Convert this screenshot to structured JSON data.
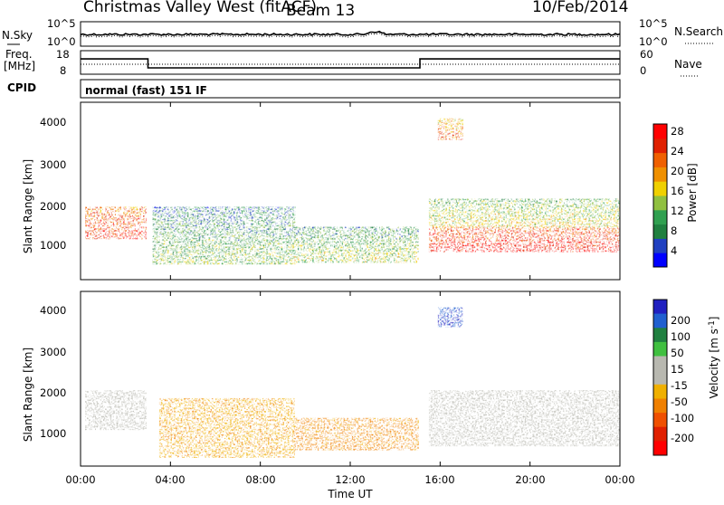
{
  "header": {
    "station": "Christmas Valley West (fitACF)",
    "beam": "Beam 13",
    "date": "10/Feb/2014"
  },
  "status_panel": {
    "nsky_label": "N.Sky",
    "nsky_ticks": [
      "10^5",
      "10^0"
    ],
    "nsearch_label": "N.Search",
    "nsearch_ticks": [
      "10^5",
      "10^0"
    ],
    "freq_label": "Freq.",
    "freq_unit": "[MHz]",
    "freq_ticks": [
      "18",
      "8"
    ],
    "nave_label": "Nave",
    "nave_ticks": [
      "60",
      "0"
    ],
    "cpid_label": "CPID",
    "cpid_value": "normal (fast) 151 IF",
    "freq_series": {
      "segments": [
        {
          "start_h": 0.0,
          "end_h": 3.0,
          "mhz": 14.5
        },
        {
          "start_h": 3.0,
          "end_h": 15.1,
          "mhz": 10.7
        },
        {
          "start_h": 15.1,
          "end_h": 24.0,
          "mhz": 14.5
        }
      ],
      "ylim": [
        8,
        18
      ]
    }
  },
  "power_panel": {
    "ylabel": "Slant Range [km]",
    "yticks": [
      "4000",
      "3000",
      "2000",
      "1000"
    ],
    "colorbar_label": "Power [dB]",
    "colorbar_ticks": [
      "28",
      "24",
      "20",
      "16",
      "12",
      "8",
      "4"
    ],
    "colorbar_colors": [
      "#0000ff",
      "#2040c0",
      "#208040",
      "#30a050",
      "#90c040",
      "#f0d000",
      "#f09000",
      "#f06000",
      "#e02000",
      "#ff0000"
    ]
  },
  "velocity_panel": {
    "ylabel": "Slant Range [km]",
    "yticks": [
      "4000",
      "3000",
      "2000",
      "1000"
    ],
    "colorbar_label": "Velocity [m s",
    "colorbar_exp": "-1",
    "colorbar_label_end": "]",
    "colorbar_ticks": [
      "200",
      "100",
      "50",
      "15",
      "-15",
      "-50",
      "-100",
      "-200"
    ],
    "colorbar_colors": [
      "#2020c0",
      "#2060d0",
      "#208040",
      "#40c040",
      "#b8b8b0",
      "#b8b8b0",
      "#f0b000",
      "#f08000",
      "#f05000",
      "#e02000",
      "#ff0000"
    ]
  },
  "xaxis": {
    "label": "Time UT",
    "ticks": [
      "00:00",
      "04:00",
      "08:00",
      "12:00",
      "16:00",
      "20:00",
      "00:00"
    ]
  },
  "chart_data": [
    {
      "type": "heatmap",
      "title": "",
      "xlabel": "Time UT",
      "ylabel": "Slant Range [km]",
      "zlabel": "Power [dB]",
      "xlim": [
        0,
        24
      ],
      "ylim": [
        180,
        4600
      ],
      "zlim": [
        0,
        30
      ],
      "colorbar_ticks": [
        4,
        8,
        12,
        16,
        20,
        24,
        28
      ],
      "regions": [
        {
          "t_start": 0.2,
          "t_end": 2.9,
          "r_low": 1200,
          "r_high": 2000,
          "power_db": 24
        },
        {
          "t_start": 3.2,
          "t_end": 9.5,
          "r_low": 600,
          "r_high": 2000,
          "power_db": 10
        },
        {
          "t_start": 9.5,
          "t_end": 15.0,
          "r_low": 600,
          "r_high": 1500,
          "power_db": 12
        },
        {
          "t_start": 15.5,
          "t_end": 24.0,
          "r_low": 900,
          "r_high": 1500,
          "power_db": 26
        },
        {
          "t_start": 15.5,
          "t_end": 24.0,
          "r_low": 1500,
          "r_high": 2200,
          "power_db": 14
        },
        {
          "t_start": 15.9,
          "t_end": 17.0,
          "r_low": 3700,
          "r_high": 4200,
          "power_db": 20
        }
      ]
    },
    {
      "type": "heatmap",
      "title": "",
      "xlabel": "Time UT",
      "ylabel": "Slant Range [km]",
      "zlabel": "Velocity [m s-1]",
      "xlim": [
        0,
        24
      ],
      "ylim": [
        180,
        4600
      ],
      "zlim": [
        -250,
        250
      ],
      "colorbar_ticks": [
        200,
        100,
        50,
        15,
        -15,
        -50,
        -100,
        -200
      ],
      "regions": [
        {
          "t_start": 0.2,
          "t_end": 2.9,
          "r_low": 1100,
          "r_high": 2100,
          "velocity": 0
        },
        {
          "t_start": 3.5,
          "t_end": 9.5,
          "r_low": 400,
          "r_high": 1900,
          "velocity": -60
        },
        {
          "t_start": 9.5,
          "t_end": 15.0,
          "r_low": 600,
          "r_high": 1400,
          "velocity": -80
        },
        {
          "t_start": 15.5,
          "t_end": 24.0,
          "r_low": 700,
          "r_high": 2100,
          "velocity": 0
        },
        {
          "t_start": 15.9,
          "t_end": 17.0,
          "r_low": 3700,
          "r_high": 4200,
          "velocity": 200
        }
      ]
    }
  ]
}
